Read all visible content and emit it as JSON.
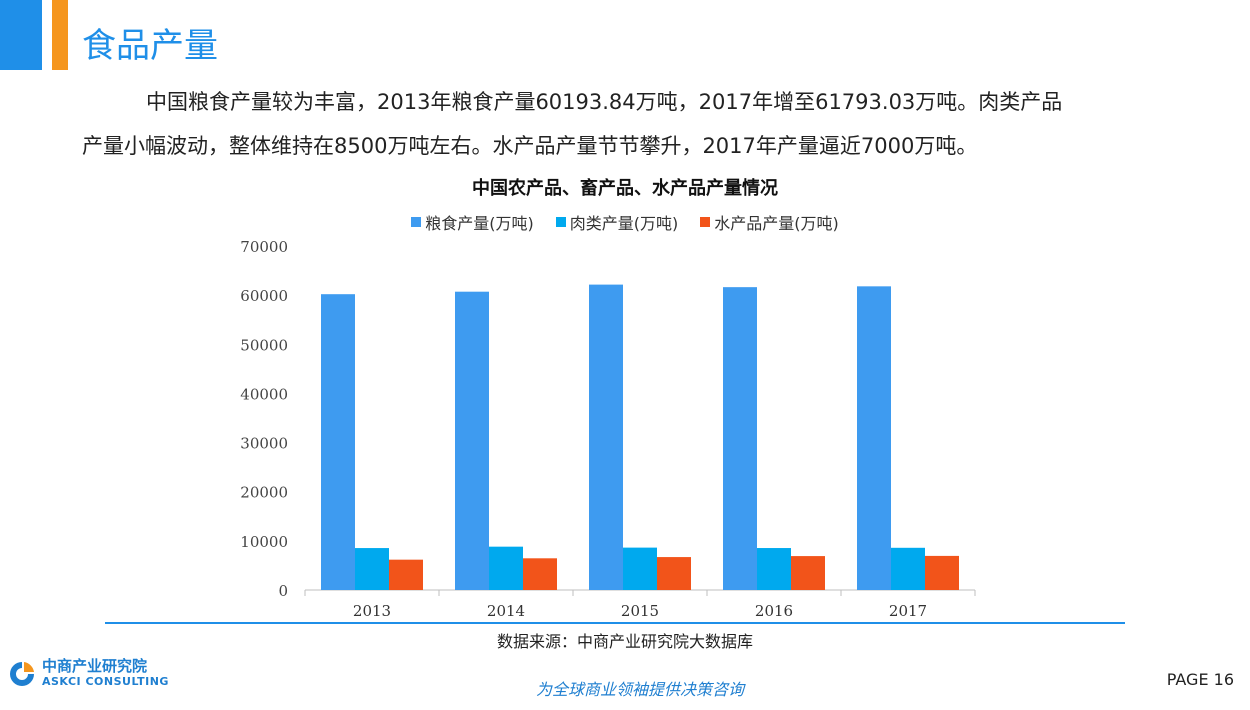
{
  "header": {
    "title": "食品产量"
  },
  "body": {
    "line1": "中国粮食产量较为丰富，2013年粮食产量60193.84万吨，2017年增至61793.03万吨。肉类产品",
    "line2": "产量小幅波动，整体维持在8500万吨左右。水产品产量节节攀升，2017年产量逼近7000万吨。"
  },
  "chart_data": {
    "type": "bar",
    "title": "中国农产品、畜产品、水产品产量情况",
    "categories": [
      "2013",
      "2014",
      "2015",
      "2016",
      "2017"
    ],
    "series": [
      {
        "name": "粮食产量(万吨)",
        "color": "#3e9bf0",
        "values": [
          60194,
          60703,
          62144,
          61625,
          61793
        ]
      },
      {
        "name": "肉类产量(万吨)",
        "color": "#00a9ee",
        "values": [
          8535,
          8818,
          8625,
          8540,
          8588
        ]
      },
      {
        "name": "水产品产量(万吨)",
        "color": "#f2541a",
        "values": [
          6172,
          6450,
          6700,
          6901,
          6938
        ]
      }
    ],
    "ylim": [
      0,
      70000
    ],
    "yticks": [
      "0",
      "10000",
      "20000",
      "30000",
      "40000",
      "50000",
      "60000",
      "70000"
    ],
    "grid": false,
    "legend_position": "top"
  },
  "footer": {
    "source": "数据来源：中商产业研究院大数据库",
    "logo_cn": "中商产业研究院",
    "logo_en": "ASKCI CONSULTING",
    "slogan": "为全球商业领袖提供决策咨询",
    "page_label": "PAGE 16"
  },
  "colors": {
    "accent_blue": "#1f8fe8",
    "accent_orange": "#f5961e"
  }
}
